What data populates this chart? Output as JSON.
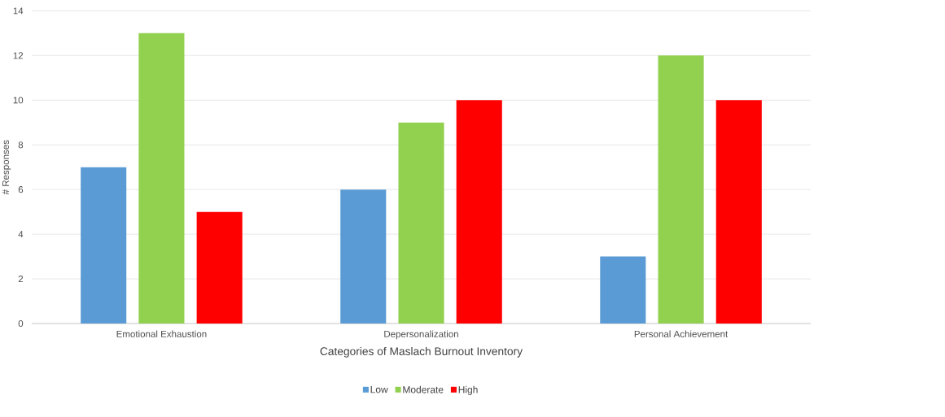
{
  "chart_data": {
    "type": "bar",
    "xlabel": "Categories of Maslach Burnout Inventory",
    "ylabel": "# Responses",
    "categories": [
      "Emotional Exhaustion",
      "Depersonalization",
      "Personal Achievement"
    ],
    "series": [
      {
        "name": "Low",
        "color": "#5b9bd5",
        "values": [
          7,
          6,
          3
        ]
      },
      {
        "name": "Moderate",
        "color": "#92d050",
        "values": [
          13,
          9,
          12
        ]
      },
      {
        "name": "High",
        "color": "#ff0000",
        "values": [
          5,
          10,
          10
        ]
      }
    ],
    "ylim": [
      0,
      14
    ],
    "yticks": [
      0,
      2,
      4,
      6,
      8,
      10,
      12,
      14
    ],
    "grid": "y",
    "legend": "bottom"
  }
}
